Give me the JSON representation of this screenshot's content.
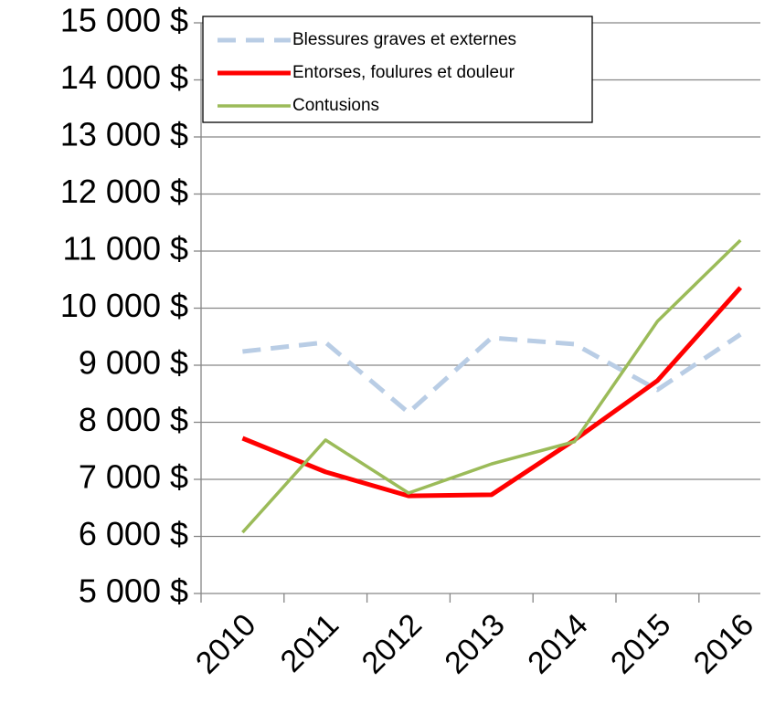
{
  "chart_data": {
    "type": "line",
    "categories": [
      "2010",
      "2011",
      "2012",
      "2013",
      "2014",
      "2015",
      "2016"
    ],
    "series": [
      {
        "name": "Blessures graves et externes",
        "color": "#b9cde5",
        "dash": true,
        "width": 5,
        "values": [
          9240,
          9400,
          8170,
          9480,
          9370,
          8570,
          9540
        ]
      },
      {
        "name": "Entorses, foulures et douleur",
        "color": "#ff0000",
        "dash": false,
        "width": 5,
        "values": [
          7720,
          7130,
          6710,
          6730,
          7690,
          8730,
          10360
        ]
      },
      {
        "name": "Contusions",
        "color": "#9bbb59",
        "dash": false,
        "width": 3.5,
        "values": [
          6070,
          7690,
          6760,
          7270,
          7660,
          9770,
          11190
        ]
      }
    ],
    "ylim": [
      5000,
      15000
    ],
    "yticks": [
      {
        "value": 5000,
        "label": "5 000 $"
      },
      {
        "value": 6000,
        "label": "6 000 $"
      },
      {
        "value": 7000,
        "label": "7 000 $"
      },
      {
        "value": 8000,
        "label": "8 000 $"
      },
      {
        "value": 9000,
        "label": "9 000 $"
      },
      {
        "value": 10000,
        "label": "10 000 $"
      },
      {
        "value": 11000,
        "label": "11 000 $"
      },
      {
        "value": 12000,
        "label": "12 000 $"
      },
      {
        "value": 13000,
        "label": "13 000 $"
      },
      {
        "value": 14000,
        "label": "14 000 $"
      },
      {
        "value": 15000,
        "label": "15 000 $"
      }
    ],
    "grid": true,
    "legend": "upper left"
  }
}
